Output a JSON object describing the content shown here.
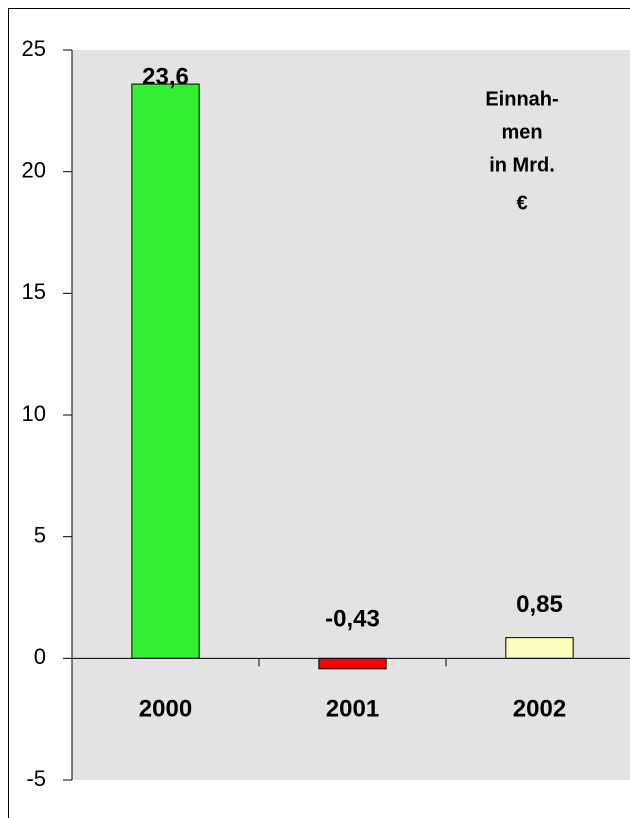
{
  "chart_data": {
    "type": "bar",
    "categories": [
      "2000",
      "2001",
      "2002"
    ],
    "values": [
      23.6,
      -0.43,
      0.85
    ],
    "value_labels": [
      "23,6",
      "-0,43",
      "0,85"
    ],
    "colors": [
      "#33ee33",
      "#ff0000",
      "#ffffc0"
    ],
    "ylim": [
      -5,
      25
    ],
    "yticks": [
      -5,
      0,
      5,
      10,
      15,
      20,
      25
    ],
    "annotation": [
      "Einnah-",
      "men",
      "in Mrd.",
      "€"
    ]
  }
}
